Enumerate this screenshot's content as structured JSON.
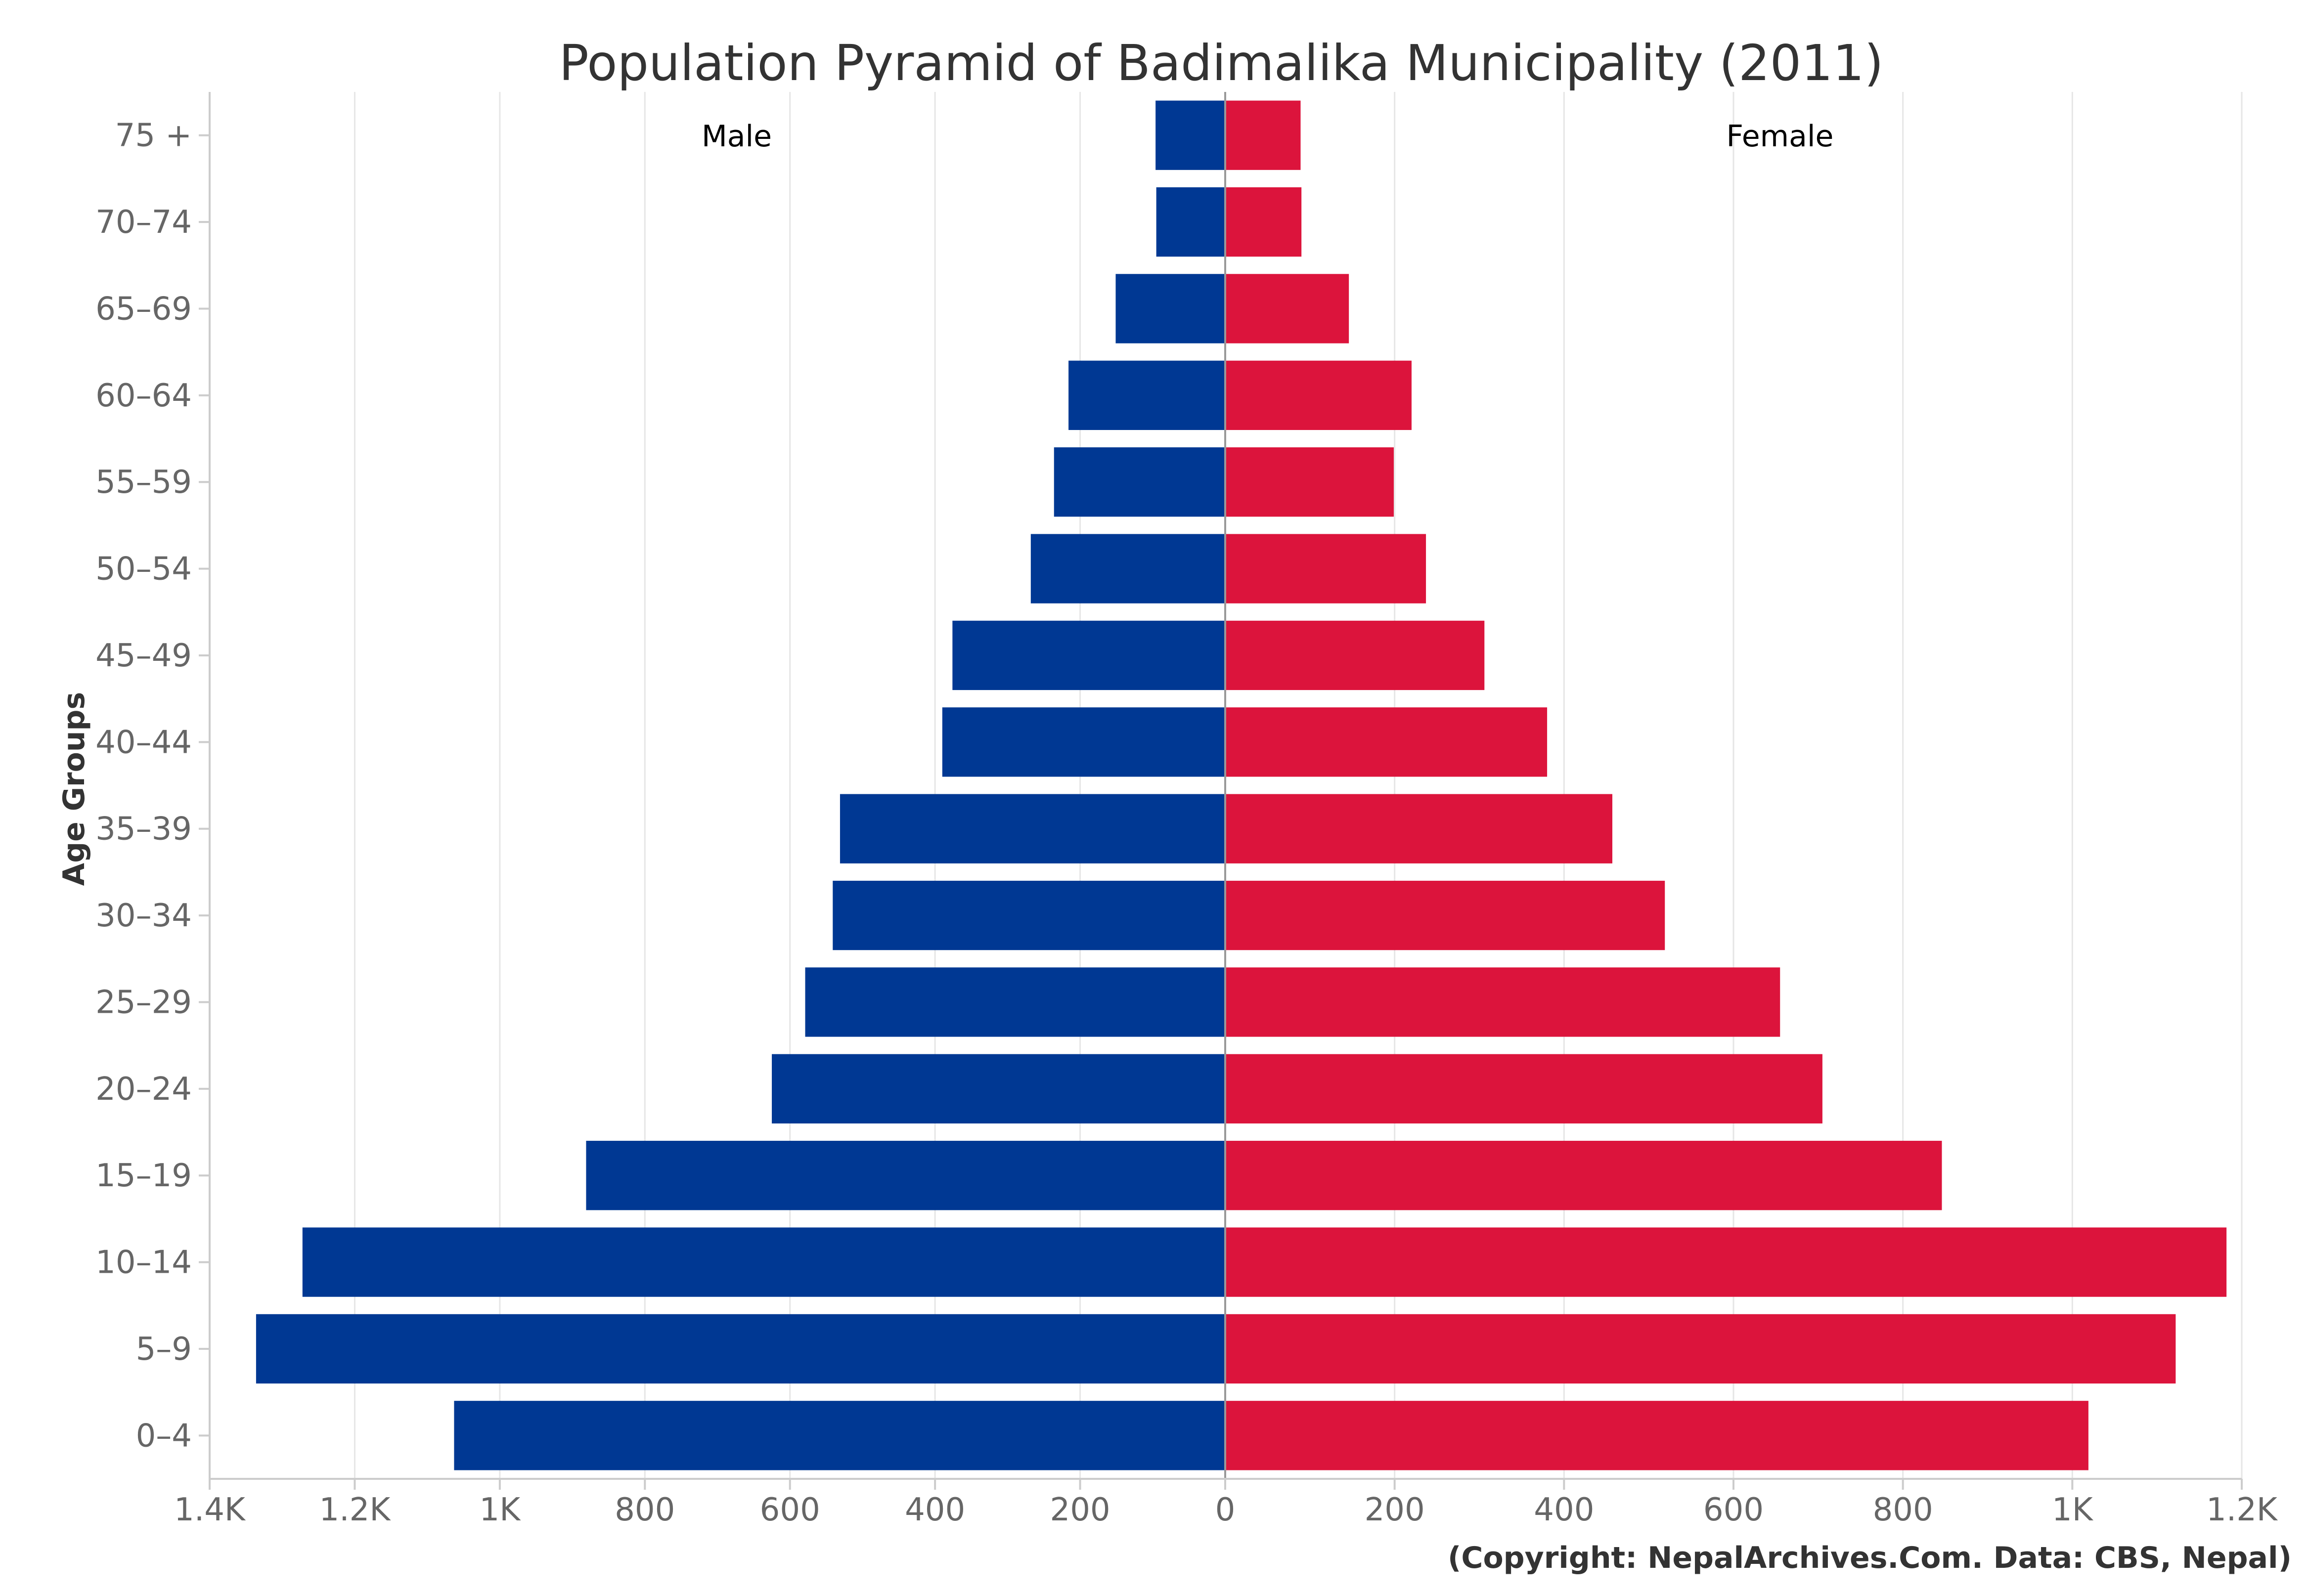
{
  "chart_data": {
    "type": "bar",
    "orientation": "horizontal-diverging",
    "title": "Population Pyramid of Badimalika Municipality (2011)",
    "ylabel": "Age Groups",
    "xlabel": "",
    "categories": [
      "0–4",
      "5–9",
      "10–14",
      "15–19",
      "20–24",
      "25–29",
      "30–34",
      "35–39",
      "40–44",
      "45–49",
      "50–54",
      "55–59",
      "60–64",
      "65–69",
      "70–74",
      "75 +"
    ],
    "series": [
      {
        "name": "Male",
        "color": "#003893",
        "values": [
          1063,
          1336,
          1272,
          881,
          625,
          579,
          541,
          531,
          390,
          376,
          268,
          236,
          216,
          151,
          95,
          96
        ]
      },
      {
        "name": "Female",
        "color": "#dc143c",
        "values": [
          1019,
          1122,
          1182,
          846,
          705,
          655,
          519,
          457,
          380,
          306,
          237,
          199,
          220,
          146,
          90,
          89
        ]
      }
    ],
    "xlim": [
      -1400,
      1200
    ],
    "left_ticks": [
      {
        "value": -1400,
        "label": "1.4K"
      },
      {
        "value": -1200,
        "label": "1.2K"
      },
      {
        "value": -1000,
        "label": "1K"
      },
      {
        "value": -800,
        "label": "800"
      },
      {
        "value": -600,
        "label": "600"
      },
      {
        "value": -400,
        "label": "400"
      },
      {
        "value": -200,
        "label": "200"
      },
      {
        "value": 0,
        "label": "0"
      }
    ],
    "right_ticks": [
      {
        "value": 200,
        "label": "200"
      },
      {
        "value": 400,
        "label": "400"
      },
      {
        "value": 600,
        "label": "600"
      },
      {
        "value": 800,
        "label": "800"
      },
      {
        "value": 1000,
        "label": "1K"
      },
      {
        "value": 1200,
        "label": "1.2K"
      }
    ],
    "grid": true,
    "credit": "(Copyright: NepalArchives.Com. Data: CBS, Nepal)"
  }
}
